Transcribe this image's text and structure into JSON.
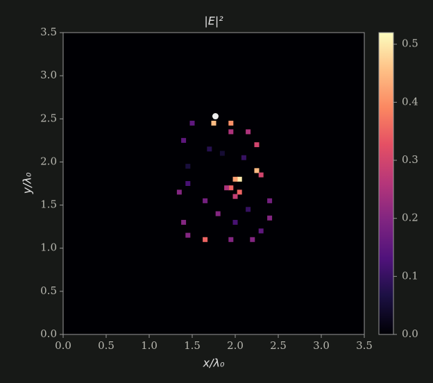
{
  "chart_data": {
    "type": "heatmap",
    "title": "|E|²",
    "x_label": "x/λ₀",
    "y_label": "y/λ₀",
    "cmap": "magma",
    "x": [
      1.75,
      1.95,
      1.95,
      2.15,
      2.25,
      1.4,
      1.5,
      2.25,
      2.3,
      2.05,
      2.0,
      1.95,
      2.05,
      1.9,
      2.0,
      1.8,
      1.35,
      1.45,
      1.65,
      2.4,
      2.4,
      2.3,
      2.2,
      1.95,
      1.65,
      1.45,
      1.4,
      2.1,
      1.7,
      1.45,
      2.0,
      2.15,
      1.85
    ],
    "y": [
      2.45,
      2.45,
      2.35,
      2.35,
      2.2,
      2.25,
      2.45,
      1.9,
      1.85,
      1.8,
      1.8,
      1.7,
      1.65,
      1.7,
      1.6,
      1.4,
      1.65,
      1.75,
      1.55,
      1.55,
      1.35,
      1.2,
      1.1,
      1.1,
      1.1,
      1.15,
      1.3,
      2.05,
      2.15,
      1.95,
      1.3,
      1.45,
      2.1
    ],
    "values": [
      0.45,
      0.4,
      0.25,
      0.25,
      0.3,
      0.15,
      0.15,
      0.45,
      0.3,
      0.5,
      0.42,
      0.35,
      0.35,
      0.25,
      0.28,
      0.2,
      0.2,
      0.12,
      0.18,
      0.18,
      0.2,
      0.15,
      0.2,
      0.2,
      0.35,
      0.2,
      0.2,
      0.1,
      0.08,
      0.06,
      0.12,
      0.1,
      0.05
    ],
    "marker": {
      "x": [
        1.77
      ],
      "y": [
        2.53
      ],
      "color": "#eeeeee"
    },
    "xlim": [
      0,
      3.5
    ],
    "ylim": [
      0,
      3.5
    ],
    "xticks": [
      {
        "value": 0,
        "label": "0.0"
      },
      {
        "value": 0.5,
        "label": "0.5"
      },
      {
        "value": 1,
        "label": "1.0"
      },
      {
        "value": 1.5,
        "label": "1.5"
      },
      {
        "value": 2,
        "label": "2.0"
      },
      {
        "value": 2.5,
        "label": "2.5"
      },
      {
        "value": 3,
        "label": "3.0"
      },
      {
        "value": 3.5,
        "label": "3.5"
      }
    ],
    "yticks": [
      {
        "value": 0,
        "label": "0.0"
      },
      {
        "value": 0.5,
        "label": "0.5"
      },
      {
        "value": 1,
        "label": "1.0"
      },
      {
        "value": 1.5,
        "label": "1.5"
      },
      {
        "value": 2,
        "label": "2.0"
      },
      {
        "value": 2.5,
        "label": "2.5"
      },
      {
        "value": 3,
        "label": "3.0"
      },
      {
        "value": 3.5,
        "label": "3.5"
      }
    ],
    "clim": [
      0,
      0.52
    ],
    "cticks": [
      {
        "value": 0,
        "label": "0.0"
      },
      0.1,
      0.2,
      0.3,
      0.4,
      0.5
    ]
  }
}
